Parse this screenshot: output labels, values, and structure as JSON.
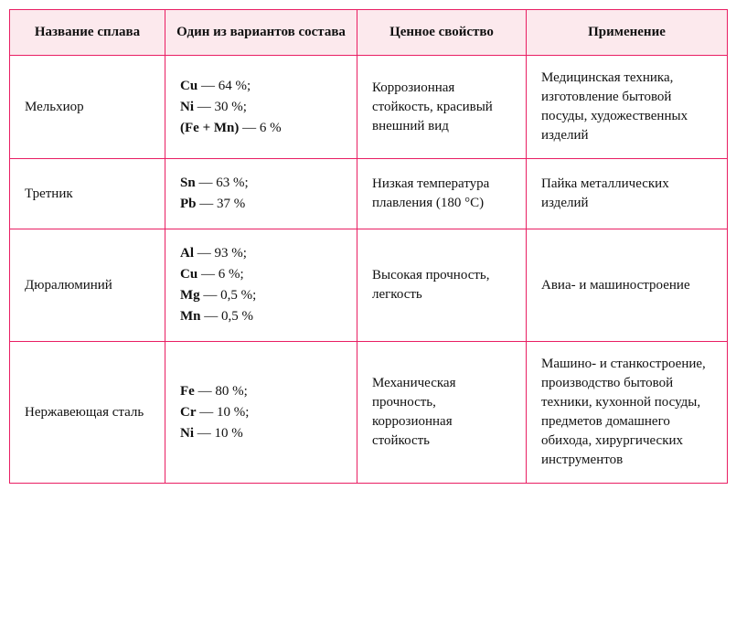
{
  "table": {
    "header_bg": "#fce9ed",
    "border_color": "#e91e63",
    "columns": [
      "Название сплава",
      "Один из вариантов состава",
      "Ценное свойство",
      "Применение"
    ],
    "rows": [
      {
        "name": "Мельхиор",
        "composition": [
          {
            "el": "Cu",
            "pct": "64 %"
          },
          {
            "el": "Ni",
            "pct": "30 %"
          },
          {
            "el": "(Fe + Mn)",
            "pct": "6 %"
          }
        ],
        "property": "Коррозионная стойкость, красивый внешний вид",
        "use": "Медицинская тех­ника, изготовление бытовой посуды, художественных изделий"
      },
      {
        "name": "Третник",
        "composition": [
          {
            "el": "Sn",
            "pct": "63 %"
          },
          {
            "el": "Pb",
            "pct": "37 %"
          }
        ],
        "property": "Низкая температура плавления (180 °С)",
        "use": "Пайка металлических изделий"
      },
      {
        "name": "Дюралюминий",
        "composition": [
          {
            "el": "Al",
            "pct": "93 %"
          },
          {
            "el": "Cu",
            "pct": "6 %"
          },
          {
            "el": "Mg",
            "pct": "0,5 %"
          },
          {
            "el": "Mn",
            "pct": "0,5 %"
          }
        ],
        "property": "Высокая прочность, легкость",
        "use": "Авиа- и машиностроение"
      },
      {
        "name": "Нержавеющая сталь",
        "composition": [
          {
            "el": "Fe",
            "pct": "80 %"
          },
          {
            "el": "Cr",
            "pct": "10 %"
          },
          {
            "el": "Ni",
            "pct": "10 %"
          }
        ],
        "property": "Механическая прочность, коррозионная стойкость",
        "use": "Машино- и станкостроение, производство бытовой техники, кухонной посуды, предметов домаш­него обихода, хирургических инструментов"
      }
    ]
  }
}
